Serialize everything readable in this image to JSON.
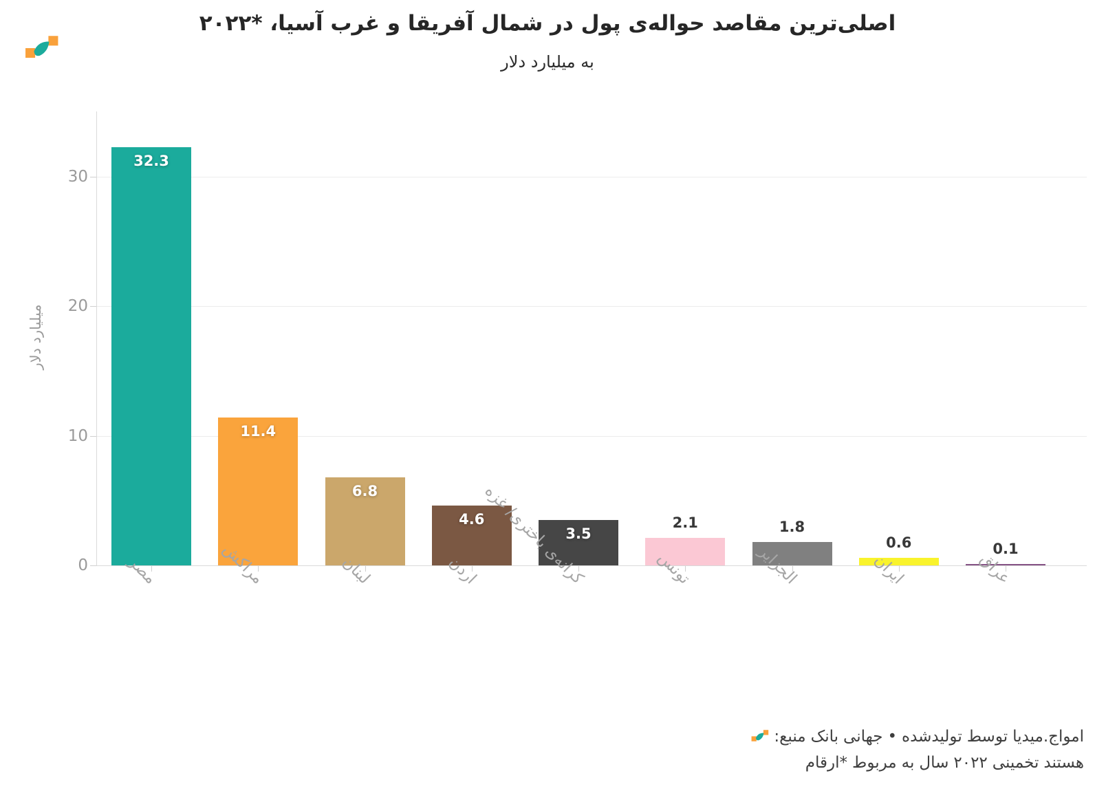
{
  "header": {
    "title": "اصلی‌ترین مقاصد حواله‌ی پول در شمال آفریقا و غرب آسیا، *۲۰۲۲",
    "subtitle": "به میلیارد دلار"
  },
  "brand": {
    "logo_teal": "#1BAB9C",
    "logo_orange": "#F9A13B"
  },
  "chart_data": {
    "type": "bar",
    "title": "اصلی‌ترین مقاصد حواله‌ی پول در شمال آفریقا و غرب آسیا، *۲۰۲۲",
    "subtitle": "به میلیارد دلار",
    "categories": [
      "مصر",
      "مراکش",
      "لبنان",
      "اردن",
      "کرانه‌ی باختری/ غزه",
      "تونس",
      "الجزایر",
      "ایران",
      "عراق"
    ],
    "values": [
      32.3,
      11.4,
      6.8,
      4.6,
      3.5,
      2.1,
      1.8,
      0.6,
      0.1
    ],
    "value_labels": [
      "32.3",
      "11.4",
      "6.8",
      "4.6",
      "3.5",
      "2.1",
      "1.8",
      "0.6",
      "0.1"
    ],
    "bar_colors": [
      "#1BAB9C",
      "#FAA43C",
      "#CBA76B",
      "#7B5843",
      "#464646",
      "#FBC8D4",
      "#808080",
      "#F9F32C",
      "#855285"
    ],
    "ylabel": "میلیارد دلار",
    "yticks": [
      0,
      10,
      20,
      30
    ],
    "ytick_labels": [
      "0",
      "10",
      "20",
      "30"
    ],
    "ylim": [
      0,
      35
    ],
    "grid": true,
    "legend": "none"
  },
  "footer": {
    "source_line": "منبع: بانک جهانی • تولیدشده توسط امواج.میدیا",
    "note_line": "*ارقام مربوط به سال ۲۰۲۲ تخمینی هستند"
  }
}
